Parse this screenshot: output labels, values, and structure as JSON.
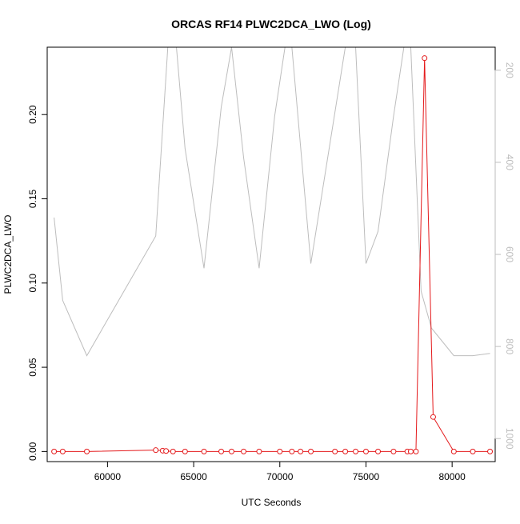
{
  "chart_data": {
    "type": "line",
    "title": "ORCAS RF14 PLWC2DCA_LWO (Log)",
    "xlabel": "UTC Seconds",
    "ylabel": "PLWC2DCA_LWO",
    "xlim": [
      56500,
      82500
    ],
    "ylim": [
      -0.006,
      0.24
    ],
    "y2lim": [
      1050,
      150
    ],
    "x_ticks": [
      60000,
      65000,
      70000,
      75000,
      80000
    ],
    "y_ticks": [
      0.0,
      0.05,
      0.1,
      0.15,
      0.2
    ],
    "y_tick_labels": [
      "0.00",
      "0.05",
      "0.10",
      "0.15",
      "0.20"
    ],
    "y2_ticks": [
      200,
      400,
      600,
      800,
      1000
    ],
    "colors": {
      "primary": "#e41a1c",
      "secondary": "#bdbdbd",
      "axis": "#000000",
      "secondary_axis": "#bdbdbd"
    },
    "series": [
      {
        "axis": "left",
        "style": "line+points",
        "x": [
          56900,
          57400,
          58800,
          62800,
          63200,
          63400,
          63800,
          64500,
          65600,
          66600,
          67200,
          67900,
          68800,
          70000,
          70700,
          71200,
          71800,
          73200,
          73800,
          74400,
          75000,
          75700,
          76600,
          77400,
          77600,
          77900,
          78400,
          78900,
          80100,
          81200,
          82200
        ],
        "values": [
          0,
          0,
          0,
          0.0008,
          0.0005,
          0.0003,
          0,
          0,
          0,
          0,
          0,
          0,
          0,
          0,
          0,
          0,
          0,
          0,
          0,
          0,
          0,
          0,
          0,
          0,
          0,
          0,
          0.2335,
          0.0205,
          0,
          0,
          0
        ]
      },
      {
        "axis": "right",
        "style": "line",
        "x": [
          56900,
          57400,
          58800,
          62800,
          63500,
          64000,
          64500,
          65600,
          66600,
          67200,
          67900,
          68800,
          69700,
          70300,
          70700,
          71800,
          73800,
          74400,
          75000,
          75700,
          76600,
          77200,
          77600,
          78200,
          78800,
          80100,
          81200,
          82200
        ],
        "values": [
          520,
          700,
          820,
          560,
          150,
          150,
          370,
          630,
          280,
          150,
          390,
          630,
          300,
          150,
          150,
          620,
          150,
          150,
          620,
          550,
          300,
          150,
          150,
          680,
          760,
          820,
          820,
          815
        ]
      }
    ]
  }
}
